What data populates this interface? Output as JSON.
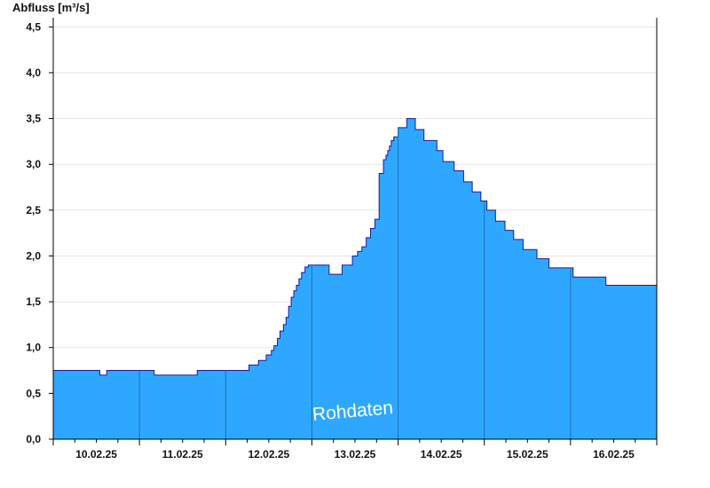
{
  "chart_data": {
    "type": "area",
    "title": "",
    "ylabel": "Abfluss [m³/s]",
    "xlabel": "",
    "ylim": [
      0,
      4.6
    ],
    "xlim": [
      0,
      7
    ],
    "yticks": [
      {
        "value": 0.0,
        "label": "0,0"
      },
      {
        "value": 0.5,
        "label": "0,5"
      },
      {
        "value": 1.0,
        "label": "1,0"
      },
      {
        "value": 1.5,
        "label": "1,5"
      },
      {
        "value": 2.0,
        "label": "2,0"
      },
      {
        "value": 2.5,
        "label": "2,5"
      },
      {
        "value": 3.0,
        "label": "3,0"
      },
      {
        "value": 3.5,
        "label": "3,5"
      },
      {
        "value": 4.0,
        "label": "4,0"
      },
      {
        "value": 4.5,
        "label": "4,5"
      }
    ],
    "day_labels": [
      "10.02.25",
      "11.02.25",
      "12.02.25",
      "13.02.25",
      "14.02.25",
      "15.02.25",
      "16.02.25"
    ],
    "grid": true,
    "fill_color": "#2ea8ff",
    "line_color": "#1a1aa0",
    "watermark": "Rohdaten",
    "x_unit_note": "x in days from start of 10.02.25",
    "x": [
      0.0,
      0.54,
      0.58,
      0.62,
      1.15,
      1.17,
      1.63,
      1.67,
      2.2,
      2.27,
      2.38,
      2.47,
      2.53,
      2.56,
      2.6,
      2.63,
      2.67,
      2.7,
      2.73,
      2.76,
      2.79,
      2.82,
      2.85,
      2.88,
      2.92,
      2.96,
      3.0,
      3.2,
      3.24,
      3.35,
      3.4,
      3.47,
      3.53,
      3.58,
      3.63,
      3.68,
      3.73,
      3.78,
      3.83,
      3.86,
      3.88,
      3.9,
      3.92,
      3.95,
      4.0,
      4.1,
      4.2,
      4.3,
      4.45,
      4.52,
      4.65,
      4.76,
      4.86,
      4.96,
      5.03,
      5.13,
      5.24,
      5.34,
      5.45,
      5.61,
      5.75,
      5.91,
      6.03,
      6.18,
      6.41,
      6.7,
      7.0
    ],
    "y": [
      0.75,
      0.7,
      0.7,
      0.75,
      0.75,
      0.7,
      0.7,
      0.75,
      0.75,
      0.81,
      0.86,
      0.92,
      0.97,
      1.02,
      1.1,
      1.18,
      1.25,
      1.33,
      1.45,
      1.55,
      1.62,
      1.68,
      1.75,
      1.82,
      1.88,
      1.9,
      1.9,
      1.8,
      1.8,
      1.9,
      1.9,
      2.0,
      2.05,
      2.1,
      2.2,
      2.3,
      2.4,
      2.9,
      3.05,
      3.1,
      3.15,
      3.2,
      3.26,
      3.3,
      3.4,
      3.5,
      3.38,
      3.26,
      3.15,
      3.03,
      2.93,
      2.81,
      2.7,
      2.6,
      2.5,
      2.38,
      2.28,
      2.18,
      2.07,
      1.97,
      1.87,
      1.87,
      1.77,
      1.77,
      1.68,
      1.68,
      1.68
    ]
  }
}
